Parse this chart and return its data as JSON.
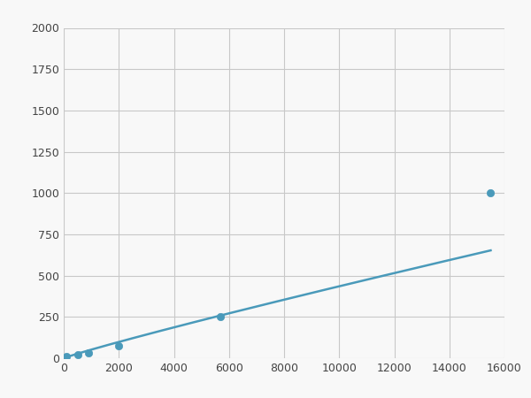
{
  "x": [
    100,
    500,
    900,
    2000,
    5700,
    15500
  ],
  "y": [
    10,
    22,
    32,
    75,
    250,
    1000
  ],
  "line_color": "#4a9aba",
  "marker_color": "#4a9aba",
  "marker_size": 6,
  "line_width": 1.8,
  "xlim": [
    0,
    16000
  ],
  "ylim": [
    0,
    2000
  ],
  "xticks": [
    0,
    2000,
    4000,
    6000,
    8000,
    10000,
    12000,
    14000,
    16000
  ],
  "yticks": [
    0,
    250,
    500,
    750,
    1000,
    1250,
    1500,
    1750,
    2000
  ],
  "grid_color": "#c8c8c8",
  "bg_color": "#f8f8f8",
  "figsize": [
    6.0,
    4.5
  ],
  "dpi": 100
}
